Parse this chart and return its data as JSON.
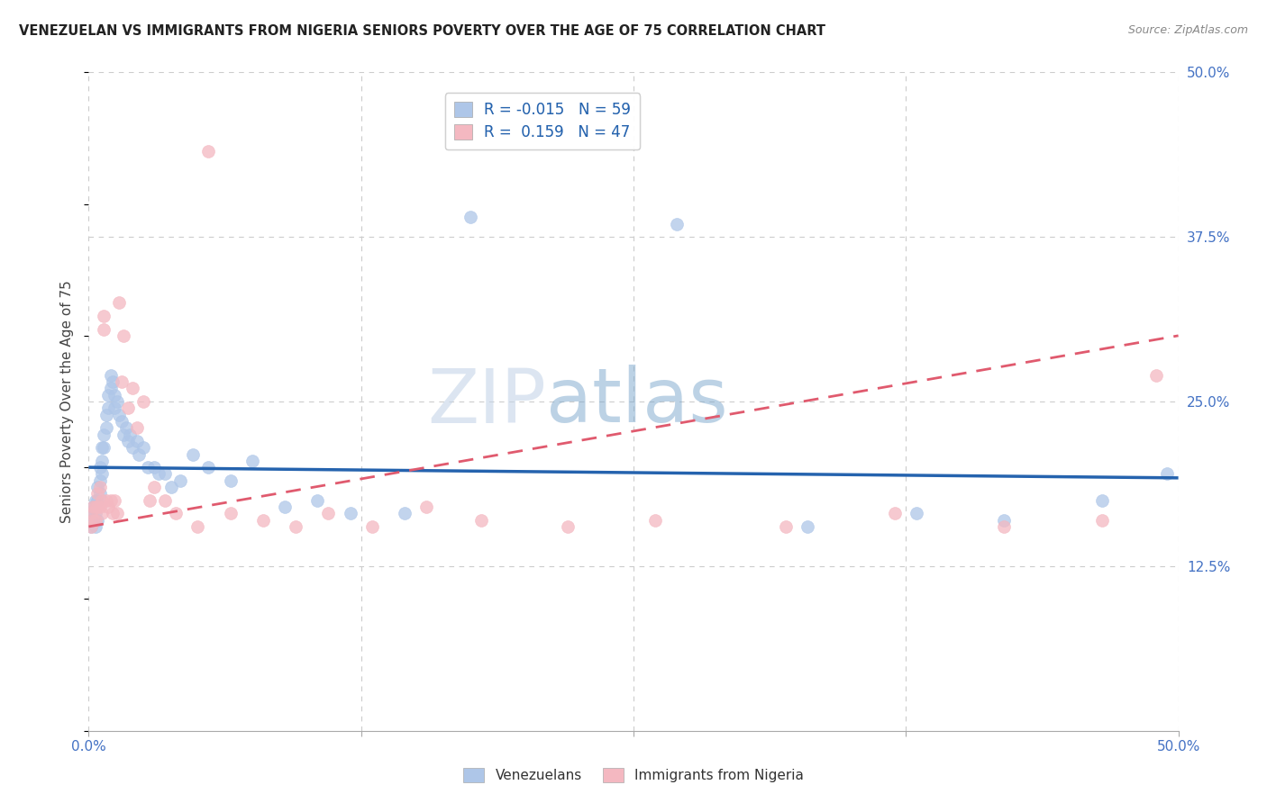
{
  "title": "VENEZUELAN VS IMMIGRANTS FROM NIGERIA SENIORS POVERTY OVER THE AGE OF 75 CORRELATION CHART",
  "source": "Source: ZipAtlas.com",
  "ylabel": "Seniors Poverty Over the Age of 75",
  "xlim": [
    0.0,
    0.5
  ],
  "ylim": [
    0.0,
    0.5
  ],
  "grid_color": "#cccccc",
  "background_color": "#ffffff",
  "venezuelan_color": "#aec6e8",
  "nigeria_color": "#f4b8c1",
  "venezuelan_line_color": "#2563ae",
  "nigeria_line_color": "#e05a6e",
  "R_venezuelan": -0.015,
  "N_venezuelan": 59,
  "R_nigeria": 0.159,
  "N_nigeria": 47,
  "ven_x": [
    0.001,
    0.001,
    0.002,
    0.002,
    0.003,
    0.003,
    0.003,
    0.004,
    0.004,
    0.004,
    0.005,
    0.005,
    0.005,
    0.006,
    0.006,
    0.006,
    0.007,
    0.007,
    0.008,
    0.008,
    0.009,
    0.009,
    0.01,
    0.01,
    0.011,
    0.012,
    0.012,
    0.013,
    0.014,
    0.015,
    0.016,
    0.017,
    0.018,
    0.019,
    0.02,
    0.022,
    0.023,
    0.025,
    0.027,
    0.03,
    0.032,
    0.035,
    0.038,
    0.042,
    0.048,
    0.055,
    0.065,
    0.075,
    0.09,
    0.105,
    0.12,
    0.145,
    0.175,
    0.27,
    0.33,
    0.38,
    0.42,
    0.465,
    0.495
  ],
  "ven_y": [
    0.165,
    0.155,
    0.17,
    0.16,
    0.175,
    0.165,
    0.155,
    0.185,
    0.175,
    0.16,
    0.2,
    0.19,
    0.18,
    0.215,
    0.205,
    0.195,
    0.225,
    0.215,
    0.24,
    0.23,
    0.255,
    0.245,
    0.27,
    0.26,
    0.265,
    0.255,
    0.245,
    0.25,
    0.24,
    0.235,
    0.225,
    0.23,
    0.22,
    0.225,
    0.215,
    0.22,
    0.21,
    0.215,
    0.2,
    0.2,
    0.195,
    0.195,
    0.185,
    0.19,
    0.21,
    0.2,
    0.19,
    0.205,
    0.17,
    0.175,
    0.165,
    0.165,
    0.39,
    0.385,
    0.155,
    0.165,
    0.16,
    0.175,
    0.195
  ],
  "nig_x": [
    0.001,
    0.001,
    0.002,
    0.002,
    0.003,
    0.003,
    0.004,
    0.004,
    0.005,
    0.005,
    0.006,
    0.006,
    0.007,
    0.007,
    0.008,
    0.009,
    0.01,
    0.011,
    0.012,
    0.013,
    0.014,
    0.015,
    0.016,
    0.018,
    0.02,
    0.022,
    0.025,
    0.028,
    0.03,
    0.035,
    0.04,
    0.05,
    0.055,
    0.065,
    0.08,
    0.095,
    0.11,
    0.13,
    0.155,
    0.18,
    0.22,
    0.26,
    0.32,
    0.37,
    0.42,
    0.465,
    0.49
  ],
  "nig_y": [
    0.165,
    0.155,
    0.17,
    0.16,
    0.17,
    0.16,
    0.18,
    0.17,
    0.185,
    0.17,
    0.175,
    0.165,
    0.315,
    0.305,
    0.175,
    0.17,
    0.175,
    0.165,
    0.175,
    0.165,
    0.325,
    0.265,
    0.3,
    0.245,
    0.26,
    0.23,
    0.25,
    0.175,
    0.185,
    0.175,
    0.165,
    0.155,
    0.44,
    0.165,
    0.16,
    0.155,
    0.165,
    0.155,
    0.17,
    0.16,
    0.155,
    0.16,
    0.155,
    0.165,
    0.155,
    0.16,
    0.27
  ],
  "ven_line_x": [
    0.0,
    0.5
  ],
  "ven_line_y": [
    0.2,
    0.192
  ],
  "nig_line_x": [
    0.0,
    0.5
  ],
  "nig_line_y": [
    0.155,
    0.3
  ]
}
